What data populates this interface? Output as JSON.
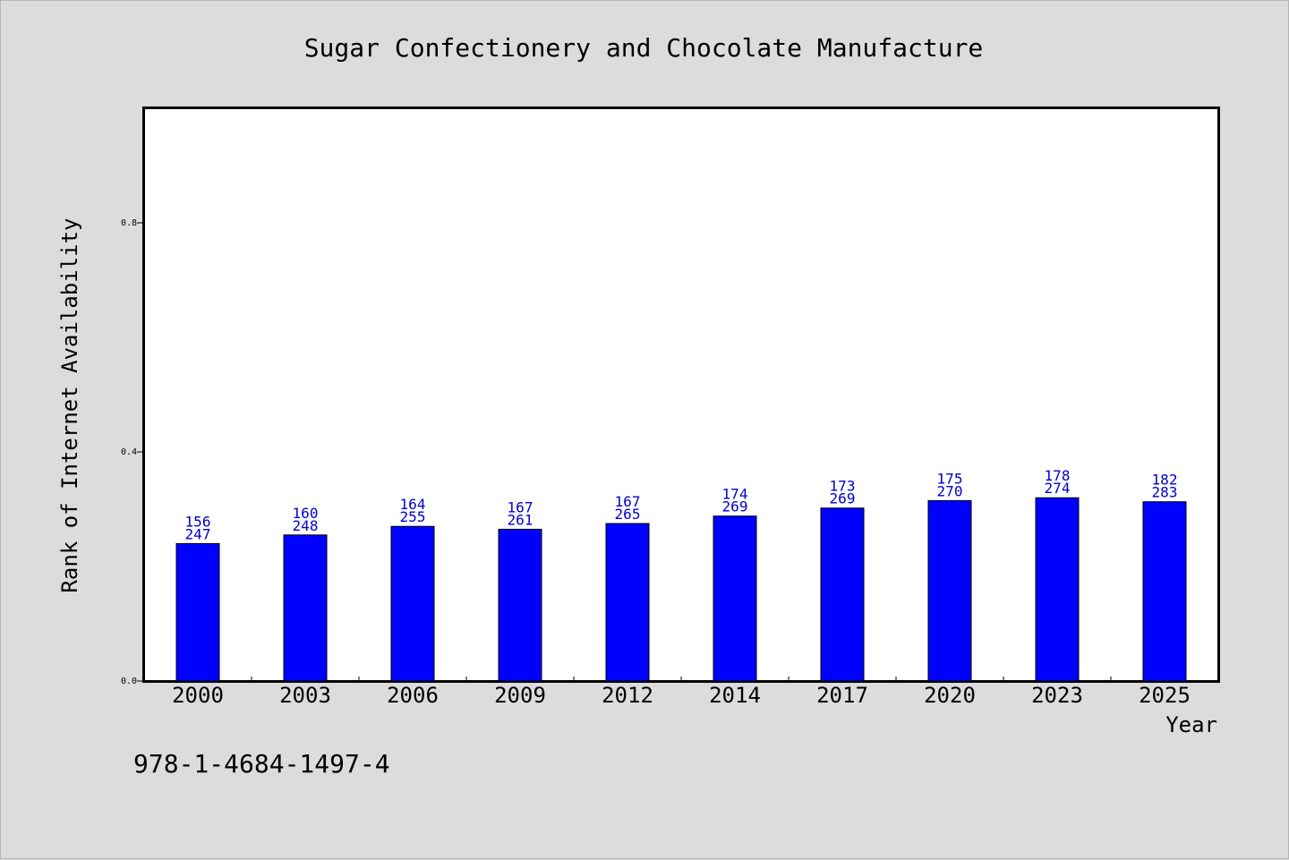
{
  "chart_data": {
    "type": "bar",
    "title": "Sugar Confectionery and Chocolate Manufacture",
    "xlabel": "Year",
    "ylabel": "Rank of Internet Availability",
    "categories": [
      "2000",
      "2003",
      "2006",
      "2009",
      "2012",
      "2014",
      "2017",
      "2020",
      "2023",
      "2025"
    ],
    "values": [
      0.24,
      0.255,
      0.27,
      0.265,
      0.275,
      0.288,
      0.302,
      0.315,
      0.32,
      0.313
    ],
    "labels_top": [
      "156",
      "160",
      "164",
      "167",
      "167",
      "174",
      "173",
      "175",
      "178",
      "182"
    ],
    "labels_bottom": [
      "247",
      "248",
      "255",
      "261",
      "265",
      "269",
      "269",
      "270",
      "274",
      "283"
    ],
    "ylim": [
      0,
      1.0
    ],
    "yticks": [
      0.0,
      0.4,
      0.8
    ],
    "ytick_labels": [
      "0.0",
      "0.4",
      "0.8"
    ],
    "bar_color": "#0000ff",
    "label_color": "#0000cc",
    "grid": false
  },
  "footer": {
    "isbn": "978-1-4684-1497-4"
  },
  "colors": {
    "background": "#dcdcdc",
    "plot_background": "#ffffff"
  }
}
